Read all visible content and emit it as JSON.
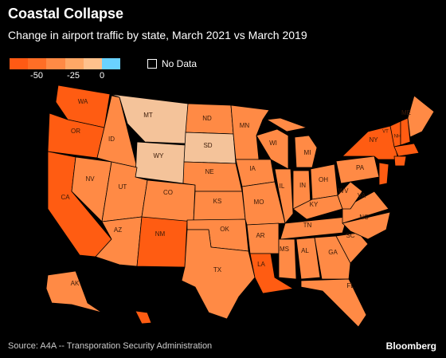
{
  "title": "Coastal Collapse",
  "subtitle": "Change in airport traffic by state, March 2021 vs March 2019",
  "legend": {
    "ticks": [
      "-50",
      "-25",
      "0"
    ],
    "colors": [
      "#ff5a14",
      "#ff6e26",
      "#ff8a45",
      "#ffa866",
      "#ffc18c",
      "#6ad2ff"
    ],
    "no_data_label": "No Data"
  },
  "colors": {
    "deep": "#ff5c12",
    "mid": "#ff8a45",
    "light": "#f5a371",
    "pale": "#f4c39a",
    "water": "#000000"
  },
  "states": {
    "WA": "WA",
    "OR": "OR",
    "CA": "CA",
    "NV": "NV",
    "ID": "ID",
    "MT": "MT",
    "WY": "WY",
    "UT": "UT",
    "AZ": "AZ",
    "NM": "NM",
    "CO": "CO",
    "ND": "ND",
    "SD": "SD",
    "NE": "NE",
    "KS": "KS",
    "OK": "OK",
    "TX": "TX",
    "MN": "MN",
    "IA": "IA",
    "MO": "MO",
    "AR": "AR",
    "LA": "LA",
    "WI": "WI",
    "IL": "IL",
    "MI": "MI",
    "IN": "IN",
    "OH": "OH",
    "KY": "KY",
    "TN": "TN",
    "MS": "MS",
    "AL": "AL",
    "GA": "GA",
    "FL": "FL",
    "SC": "SC",
    "NC": "NC",
    "VA": "VA",
    "WV": "WV",
    "PA": "PA",
    "NY": "NY",
    "VT": "VT",
    "NH": "NH",
    "ME": "ME",
    "AK": "AK"
  },
  "source": "Source: A4A -- Transporation Security Administration",
  "brand": "Bloomberg"
}
